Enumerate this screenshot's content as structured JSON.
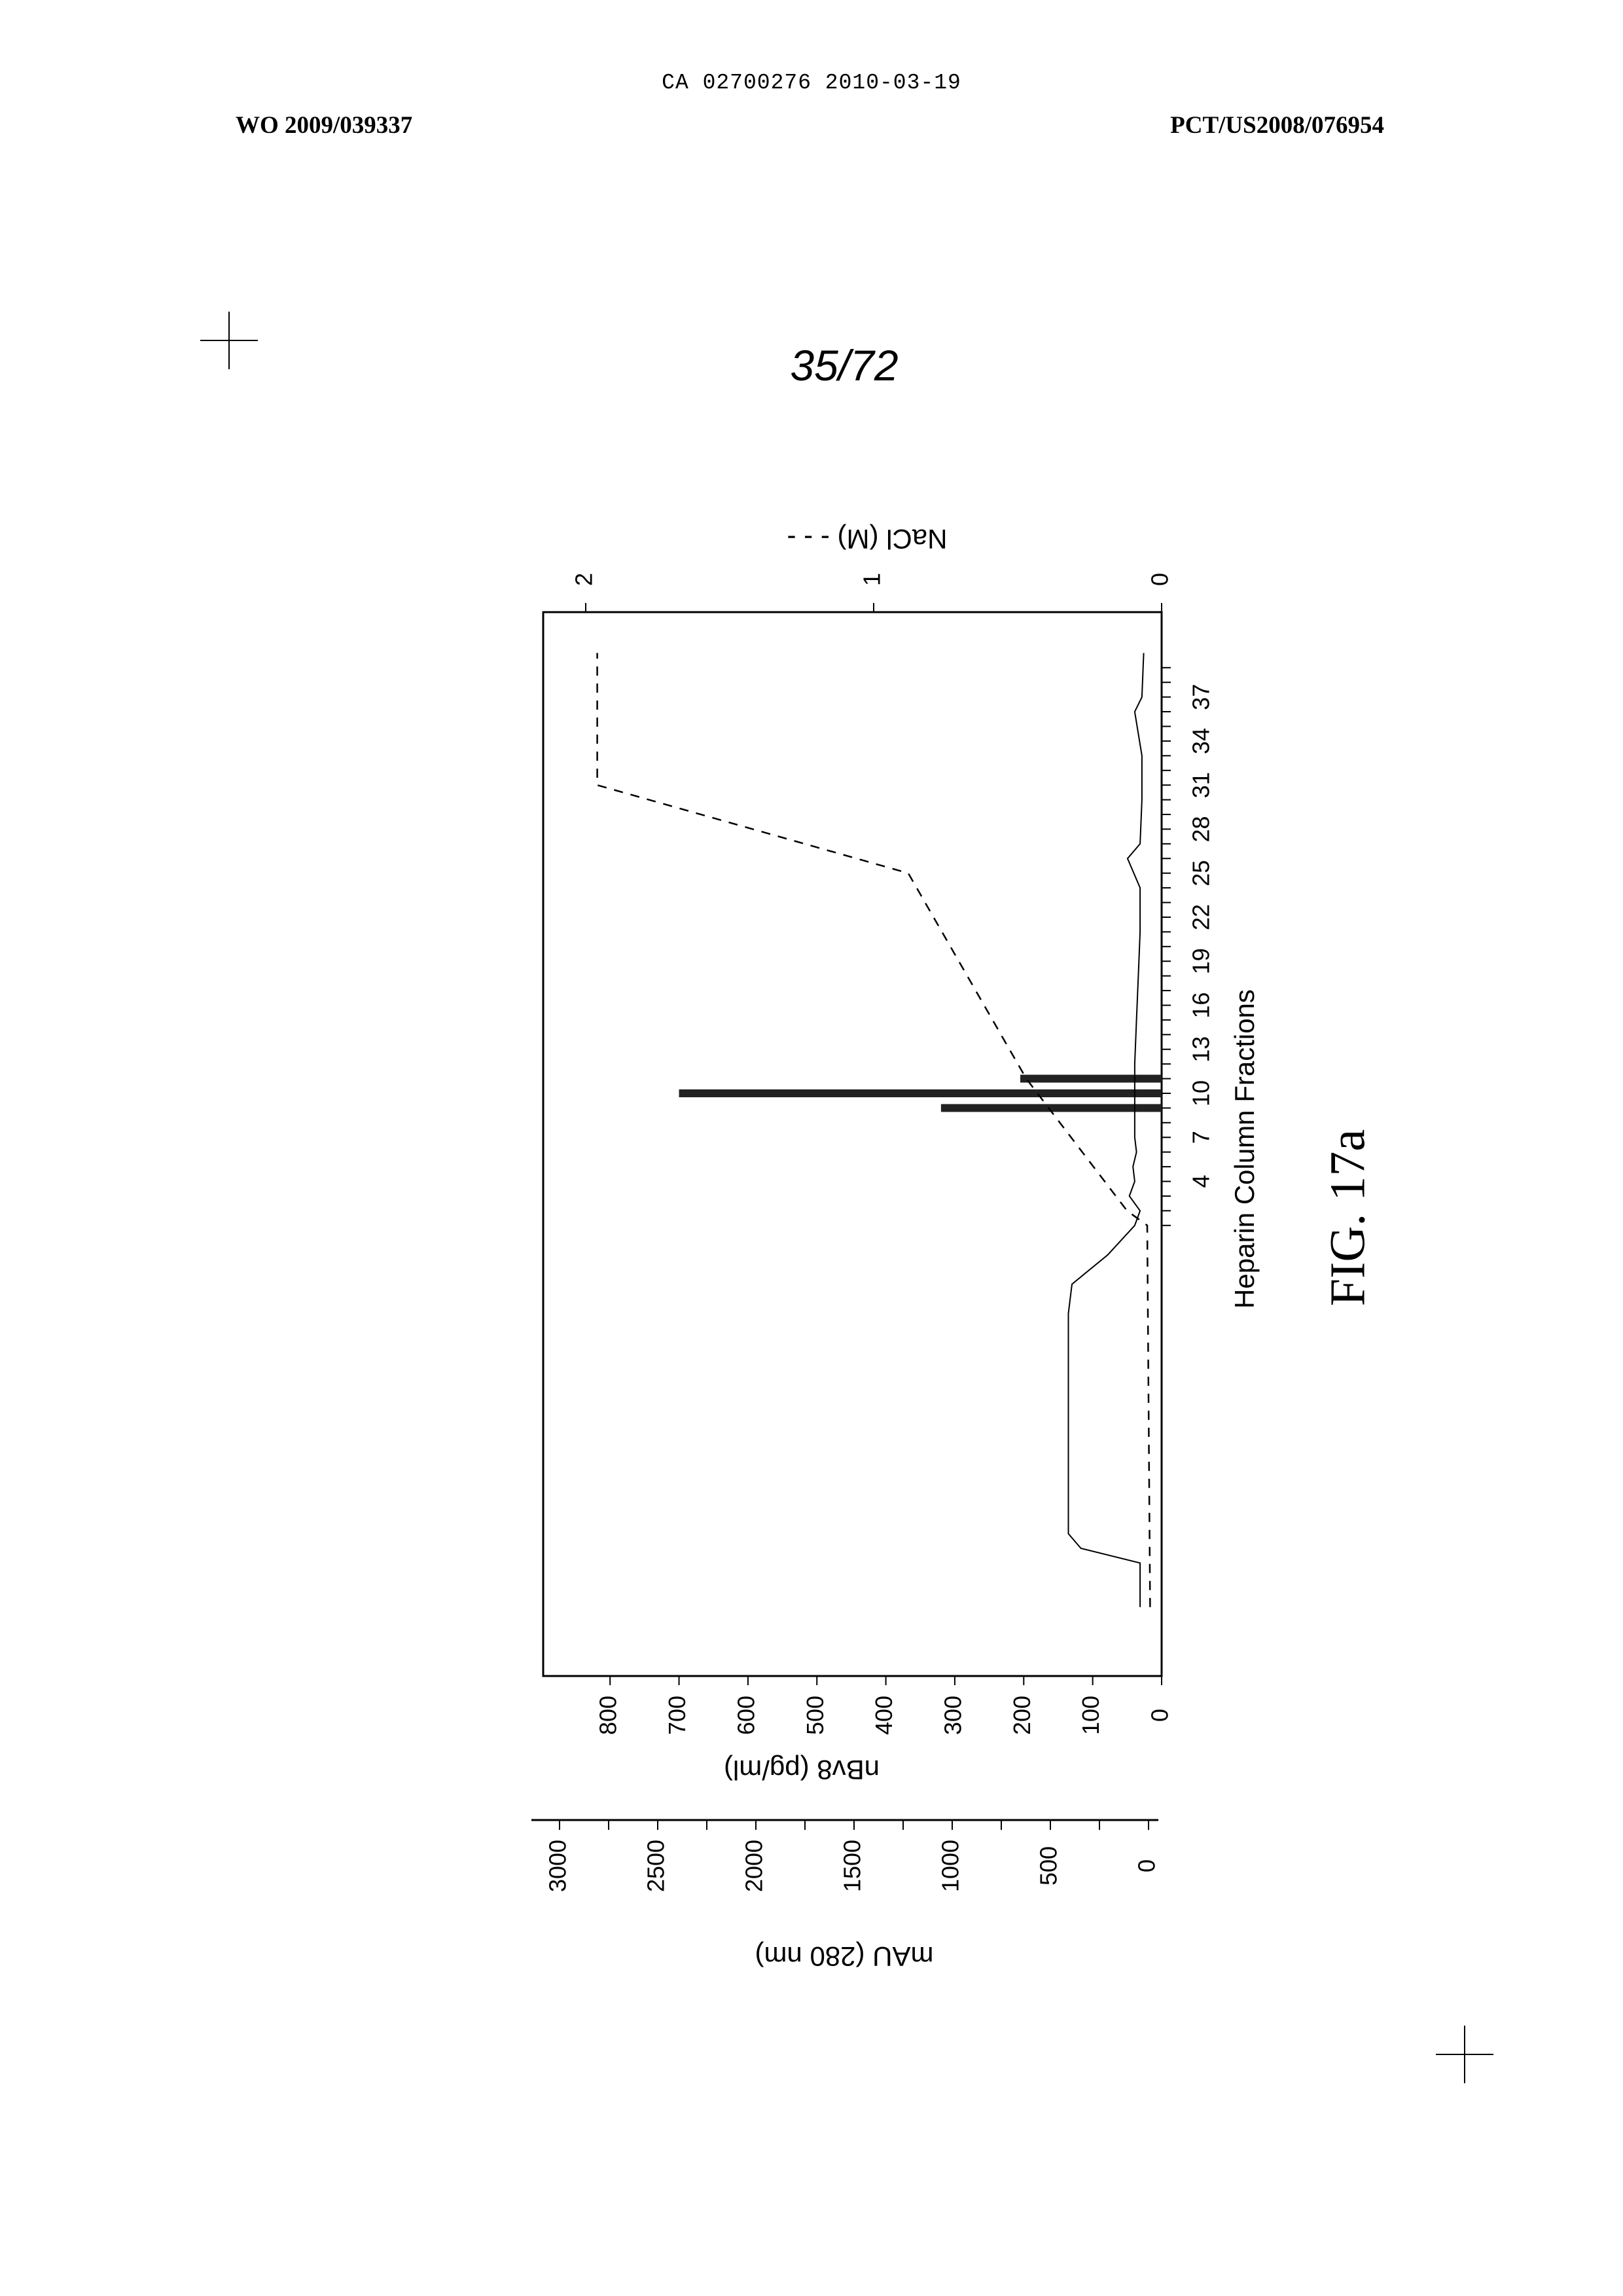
{
  "header": {
    "left": "WO 2009/039337",
    "center": "CA 02700276 2010-03-19",
    "right": "PCT/US2008/076954"
  },
  "page_number": "35/72",
  "figure_caption": "FIG. 17a",
  "chart_data": {
    "type": "bar",
    "orientation": "rotated-90-ccw",
    "xlabel": "Heparin Column Fractions",
    "x_ticks": [
      "4",
      "7",
      "10",
      "13",
      "16",
      "19",
      "22",
      "25",
      "28",
      "31",
      "34",
      "37"
    ],
    "y_left_label": "nBv8 (pg/ml)",
    "y_left_ticks": [
      0,
      100,
      200,
      300,
      400,
      500,
      600,
      700,
      800
    ],
    "y_left_lim": [
      0,
      880
    ],
    "y_outer_label": "mAU (280 nm)",
    "y_outer_ticks": [
      0,
      500,
      1000,
      1500,
      2000,
      2500,
      3000
    ],
    "y_outer_lim": [
      0,
      3100
    ],
    "y_right_label": "NaCl (M) - - -",
    "y_right_ticks": [
      0,
      1,
      2
    ],
    "y_right_lim": [
      0,
      2.0
    ],
    "series": [
      {
        "name": "nBv8 (pg/ml)",
        "kind": "bar",
        "x": [
          9,
          10,
          11
        ],
        "values": [
          320,
          700,
          205
        ]
      },
      {
        "name": "NaCl (M)",
        "kind": "dashed-line",
        "points": [
          [
            -25,
            0.04
          ],
          [
            1,
            0.05
          ],
          [
            2,
            0.12
          ],
          [
            11,
            0.47
          ],
          [
            25,
            0.88
          ],
          [
            31,
            1.96
          ],
          [
            40,
            1.96
          ]
        ]
      },
      {
        "name": "mAU (280 nm)",
        "kind": "line",
        "points": [
          [
            -25,
            120
          ],
          [
            -22,
            120
          ],
          [
            -21,
            450
          ],
          [
            -20,
            520
          ],
          [
            -18,
            520
          ],
          [
            -12,
            520
          ],
          [
            -5,
            520
          ],
          [
            -3,
            500
          ],
          [
            -1,
            300
          ],
          [
            1,
            150
          ],
          [
            2,
            120
          ],
          [
            3,
            180
          ],
          [
            4,
            150
          ],
          [
            5,
            160
          ],
          [
            6,
            140
          ],
          [
            7,
            150
          ],
          [
            8,
            150
          ],
          [
            12,
            150
          ],
          [
            15,
            140
          ],
          [
            18,
            130
          ],
          [
            21,
            120
          ],
          [
            24,
            120
          ],
          [
            26,
            190
          ],
          [
            27,
            120
          ],
          [
            30,
            110
          ],
          [
            33,
            110
          ],
          [
            36,
            150
          ],
          [
            37,
            110
          ],
          [
            40,
            100
          ]
        ]
      }
    ]
  }
}
